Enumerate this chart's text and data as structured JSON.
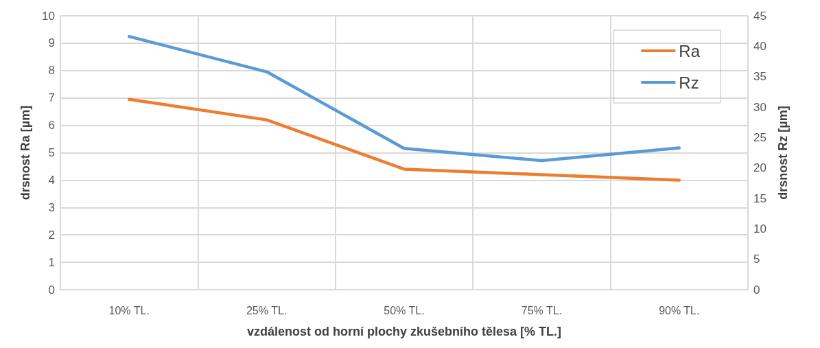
{
  "chart_data": {
    "type": "line",
    "xlabel": "vzdálenost od horní plochy zkušebního tělesa [% TL.]",
    "ylabel": "drsnost Ra [µm]",
    "y2label": "drsnost Rz [µm]",
    "categories": [
      "10% TL.",
      "25% TL.",
      "50% TL.",
      "75% TL.",
      "90% TL."
    ],
    "series": [
      {
        "name": "Ra",
        "color": "#ed7d31",
        "values": [
          6.95,
          6.2,
          4.4,
          4.2,
          4.0
        ]
      },
      {
        "name": "Rz",
        "color": "#5b9bd5",
        "axis": "y2",
        "values": [
          41.6,
          35.8,
          23.2,
          21.2,
          23.3
        ]
      }
    ],
    "ylim": [
      0,
      10
    ],
    "yticks": [
      0,
      1,
      2,
      3,
      4,
      5,
      6,
      7,
      8,
      9,
      10
    ],
    "y2lim": [
      0,
      45
    ],
    "y2ticks": [
      0,
      5,
      10,
      15,
      20,
      25,
      30,
      35,
      40,
      45
    ],
    "grid": true,
    "legend": "top right",
    "marker": "none",
    "line_style": "solid"
  }
}
